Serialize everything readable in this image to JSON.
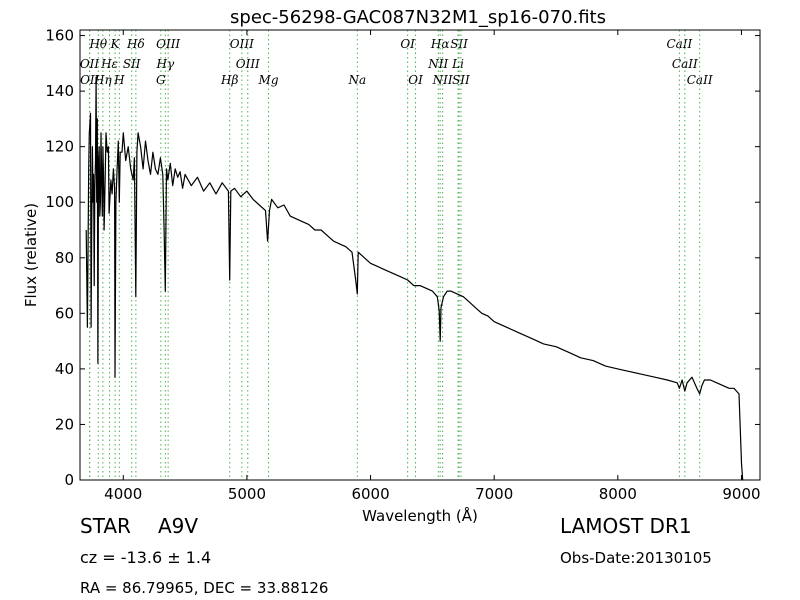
{
  "chart_data": {
    "type": "line",
    "title": "spec-56298-GAC087N32M1_sp16-070.fits",
    "xlabel": "Wavelength (Å)",
    "ylabel": "Flux (relative)",
    "xlim": [
      3650,
      9150
    ],
    "ylim": [
      0,
      162
    ],
    "x_ticks": [
      4000,
      5000,
      6000,
      7000,
      8000,
      9000
    ],
    "y_ticks": [
      0,
      20,
      40,
      60,
      80,
      100,
      120,
      140,
      160
    ],
    "grid": false,
    "series": [
      {
        "color": "#000000",
        "x": [
          3700,
          3710,
          3720,
          3725,
          3730,
          3735,
          3740,
          3745,
          3750,
          3755,
          3760,
          3765,
          3770,
          3775,
          3780,
          3785,
          3790,
          3795,
          3800,
          3805,
          3810,
          3815,
          3820,
          3825,
          3830,
          3835,
          3840,
          3845,
          3850,
          3860,
          3870,
          3880,
          3885,
          3890,
          3900,
          3910,
          3920,
          3930,
          3933,
          3940,
          3950,
          3960,
          3968,
          3975,
          3990,
          4000,
          4020,
          4040,
          4060,
          4080,
          4090,
          4101,
          4110,
          4120,
          4140,
          4160,
          4180,
          4200,
          4220,
          4240,
          4260,
          4280,
          4300,
          4320,
          4330,
          4340,
          4350,
          4360,
          4380,
          4400,
          4420,
          4440,
          4460,
          4480,
          4500,
          4550,
          4600,
          4650,
          4700,
          4750,
          4800,
          4850,
          4861,
          4870,
          4900,
          4950,
          5000,
          5050,
          5100,
          5150,
          5167,
          5183,
          5200,
          5250,
          5300,
          5350,
          5400,
          5450,
          5500,
          5550,
          5600,
          5650,
          5700,
          5750,
          5800,
          5850,
          5880,
          5893,
          5900,
          5950,
          6000,
          6050,
          6100,
          6150,
          6200,
          6250,
          6300,
          6350,
          6400,
          6450,
          6500,
          6540,
          6555,
          6563,
          6570,
          6590,
          6620,
          6650,
          6700,
          6750,
          6800,
          6850,
          6900,
          6950,
          7000,
          7100,
          7200,
          7300,
          7400,
          7500,
          7600,
          7700,
          7800,
          7900,
          8000,
          8100,
          8200,
          8300,
          8400,
          8480,
          8498,
          8520,
          8542,
          8560,
          8600,
          8640,
          8662,
          8680,
          8700,
          8750,
          8800,
          8850,
          8900,
          8940,
          8960,
          8980,
          9000,
          9010,
          9015
        ],
        "y": [
          90,
          55,
          112,
          125,
          128,
          132,
          55,
          90,
          120,
          100,
          110,
          70,
          105,
          115,
          145,
          100,
          130,
          42,
          115,
          120,
          95,
          100,
          125,
          110,
          95,
          120,
          110,
          90,
          100,
          125,
          118,
          120,
          96,
          100,
          108,
          103,
          112,
          105,
          37,
          100,
          112,
          122,
          100,
          118,
          118,
          125,
          115,
          120,
          112,
          108,
          116,
          66,
          118,
          125,
          120,
          112,
          122,
          115,
          110,
          118,
          112,
          110,
          116,
          110,
          90,
          68,
          112,
          108,
          114,
          106,
          112,
          109,
          111,
          105,
          110,
          106,
          109,
          104,
          107,
          103,
          107,
          104,
          72,
          104,
          105,
          102,
          104,
          101,
          99,
          97,
          86,
          97,
          101,
          98,
          99,
          95,
          94,
          93,
          92,
          90,
          90,
          88,
          86,
          85,
          84,
          82,
          72,
          67,
          82,
          80,
          78,
          77,
          76,
          75,
          74,
          73,
          72,
          70,
          70,
          69,
          68,
          66,
          61,
          50,
          62,
          66,
          68,
          68,
          67,
          66,
          64,
          62,
          60,
          59,
          57,
          55,
          53,
          51,
          49,
          48,
          46,
          44,
          43,
          41,
          40,
          39,
          38,
          37,
          36,
          35,
          33,
          36,
          32,
          35,
          37,
          33,
          31,
          34,
          36,
          36,
          35,
          34,
          33,
          33,
          32,
          31,
          6,
          0,
          0
        ]
      }
    ],
    "line_markers": [
      {
        "label": "Hθ",
        "x": 3798,
        "row": 0
      },
      {
        "label": "K",
        "x": 3934,
        "row": 0
      },
      {
        "label": "Hδ",
        "x": 4102,
        "row": 0
      },
      {
        "label": "OIII",
        "x": 4363,
        "row": 0
      },
      {
        "label": "OIII",
        "x": 4959,
        "row": 0
      },
      {
        "label": "OI",
        "x": 6300,
        "row": 0
      },
      {
        "label": "Hα",
        "x": 6563,
        "row": 0
      },
      {
        "label": "SII",
        "x": 6716,
        "row": 0
      },
      {
        "label": "CaII",
        "x": 8498,
        "row": 0
      },
      {
        "label": "OII",
        "x": 3727,
        "row": 1
      },
      {
        "label": "Hε",
        "x": 3889,
        "row": 1
      },
      {
        "label": "SII",
        "x": 4068,
        "row": 1
      },
      {
        "label": "Hγ",
        "x": 4340,
        "row": 1
      },
      {
        "label": "OIII",
        "x": 5007,
        "row": 1
      },
      {
        "label": "NII",
        "x": 6548,
        "row": 1
      },
      {
        "label": "Li",
        "x": 6708,
        "row": 1
      },
      {
        "label": "CaII",
        "x": 8542,
        "row": 1
      },
      {
        "label": "OII",
        "x": 3729,
        "row": 2
      },
      {
        "label": "Hη",
        "x": 3835,
        "row": 2
      },
      {
        "label": "H",
        "x": 3968,
        "row": 2
      },
      {
        "label": "G",
        "x": 4304,
        "row": 2
      },
      {
        "label": "Hβ",
        "x": 4861,
        "row": 2
      },
      {
        "label": "Mg",
        "x": 5175,
        "row": 2
      },
      {
        "label": "Na",
        "x": 5893,
        "row": 2
      },
      {
        "label": "OI",
        "x": 6364,
        "row": 2
      },
      {
        "label": "NII",
        "x": 6583,
        "row": 2
      },
      {
        "label": "SII",
        "x": 6731,
        "row": 2
      },
      {
        "label": "CaII",
        "x": 8662,
        "row": 2
      }
    ]
  },
  "info": {
    "class_label": "STAR",
    "subclass_label": "A9V",
    "cz_text": "cz = -13.6 ± 1.4",
    "coords_text": "RA = 86.79965, DEC = 33.88126",
    "survey_label": "LAMOST DR1",
    "obs_date_text": "Obs-Date:20130105"
  },
  "colors": {
    "spectrum": "#000000",
    "marker_line": "#4caf50",
    "axes": "#000000"
  }
}
